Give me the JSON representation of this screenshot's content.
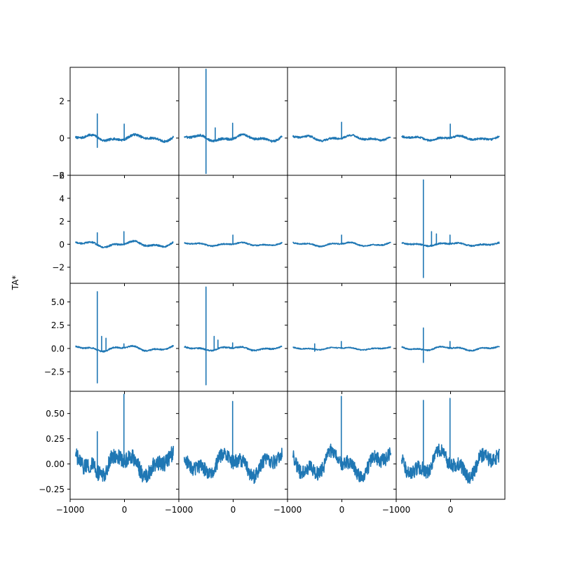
{
  "figure": {
    "ylabel": "TA*",
    "line_color": "#1f77b4"
  },
  "chart_data": {
    "type": "line",
    "layout": "4x4 grid of small multiples, shared x axis, shared y axis per row",
    "xlim": [
      -1000,
      1000
    ],
    "xticks": [
      -1000,
      0
    ],
    "xtick_labels": [
      "−1000",
      "0"
    ],
    "ylabel": "TA*",
    "rows": [
      {
        "ylim": [
          -2.0,
          3.8
        ],
        "yticks": [
          -2,
          0,
          2
        ],
        "ytick_labels": [
          "−2",
          "0",
          "2"
        ],
        "panels": [
          {
            "noise": 0.06,
            "wave": 0.12,
            "spikes": [
              {
                "x": -500,
                "max": 1.3,
                "min": -0.5
              },
              {
                "x": -5,
                "max": 0.75,
                "min": 0
              }
            ]
          },
          {
            "noise": 0.06,
            "wave": 0.12,
            "spikes": [
              {
                "x": -500,
                "max": 3.7,
                "min": -1.9
              },
              {
                "x": -330,
                "max": 0.55,
                "min": 0
              },
              {
                "x": -10,
                "max": 0.8,
                "min": 0
              }
            ]
          },
          {
            "noise": 0.05,
            "wave": 0.1,
            "spikes": [
              {
                "x": -5,
                "max": 0.85,
                "min": 0
              }
            ]
          },
          {
            "noise": 0.05,
            "wave": 0.08,
            "spikes": [
              {
                "x": -5,
                "max": 0.75,
                "min": 0
              }
            ]
          }
        ]
      },
      {
        "ylim": [
          -3.4,
          6.0
        ],
        "yticks": [
          -2,
          0,
          2,
          4,
          6
        ],
        "ytick_labels": [
          "−2",
          "0",
          "2",
          "4",
          "6"
        ],
        "panels": [
          {
            "noise": 0.07,
            "wave": 0.18,
            "spikes": [
              {
                "x": -500,
                "max": 1.0,
                "min": 0
              },
              {
                "x": -10,
                "max": 1.1,
                "min": 0
              }
            ]
          },
          {
            "noise": 0.05,
            "wave": 0.1,
            "spikes": [
              {
                "x": -5,
                "max": 0.8,
                "min": 0
              }
            ]
          },
          {
            "noise": 0.05,
            "wave": 0.12,
            "spikes": [
              {
                "x": -5,
                "max": 0.8,
                "min": 0
              }
            ]
          },
          {
            "noise": 0.06,
            "wave": 0.1,
            "spikes": [
              {
                "x": -500,
                "max": 5.6,
                "min": -2.9
              },
              {
                "x": -350,
                "max": 1.1,
                "min": 0
              },
              {
                "x": -260,
                "max": 0.9,
                "min": 0
              },
              {
                "x": -10,
                "max": 0.8,
                "min": 0
              }
            ]
          }
        ]
      },
      {
        "ylim": [
          -4.6,
          7.0
        ],
        "yticks": [
          -2.5,
          0,
          2.5,
          5
        ],
        "ytick_labels": [
          "−2.5",
          "0.0",
          "2.5",
          "5.0"
        ],
        "panels": [
          {
            "noise": 0.07,
            "wave": 0.2,
            "spikes": [
              {
                "x": -500,
                "max": 6.1,
                "min": -3.7
              },
              {
                "x": -420,
                "max": 1.3,
                "min": 0
              },
              {
                "x": -340,
                "max": 1.1,
                "min": 0
              },
              {
                "x": -10,
                "max": 0.5,
                "min": 0
              }
            ]
          },
          {
            "noise": 0.07,
            "wave": 0.15,
            "spikes": [
              {
                "x": -500,
                "max": 6.6,
                "min": -3.9
              },
              {
                "x": -350,
                "max": 1.3,
                "min": 0
              },
              {
                "x": -280,
                "max": 0.9,
                "min": 0
              },
              {
                "x": -10,
                "max": 0.6,
                "min": 0
              }
            ]
          },
          {
            "noise": 0.05,
            "wave": 0.1,
            "spikes": [
              {
                "x": -500,
                "max": 0.5,
                "min": -0.3
              },
              {
                "x": -10,
                "max": 0.75,
                "min": 0
              }
            ]
          },
          {
            "noise": 0.06,
            "wave": 0.15,
            "spikes": [
              {
                "x": -500,
                "max": 2.2,
                "min": -1.5
              },
              {
                "x": -10,
                "max": 0.75,
                "min": 0
              }
            ]
          }
        ]
      },
      {
        "ylim": [
          -0.35,
          0.72
        ],
        "yticks": [
          -0.25,
          0,
          0.25,
          0.5
        ],
        "ytick_labels": [
          "−0.25",
          "0.00",
          "0.25",
          "0.50"
        ],
        "panels": [
          {
            "noise": 0.08,
            "wave": 0.08,
            "spikes": [
              {
                "x": -500,
                "max": 0.32,
                "min": 0
              },
              {
                "x": -10,
                "max": 0.69,
                "min": 0
              }
            ]
          },
          {
            "noise": 0.07,
            "wave": 0.08,
            "spikes": [
              {
                "x": -10,
                "max": 0.62,
                "min": 0
              }
            ]
          },
          {
            "noise": 0.07,
            "wave": 0.09,
            "spikes": [
              {
                "x": -10,
                "max": 0.67,
                "min": 0
              }
            ]
          },
          {
            "noise": 0.07,
            "wave": 0.09,
            "spikes": [
              {
                "x": -500,
                "max": 0.63,
                "min": 0
              },
              {
                "x": -10,
                "max": 0.65,
                "min": 0
              }
            ]
          }
        ]
      }
    ]
  }
}
